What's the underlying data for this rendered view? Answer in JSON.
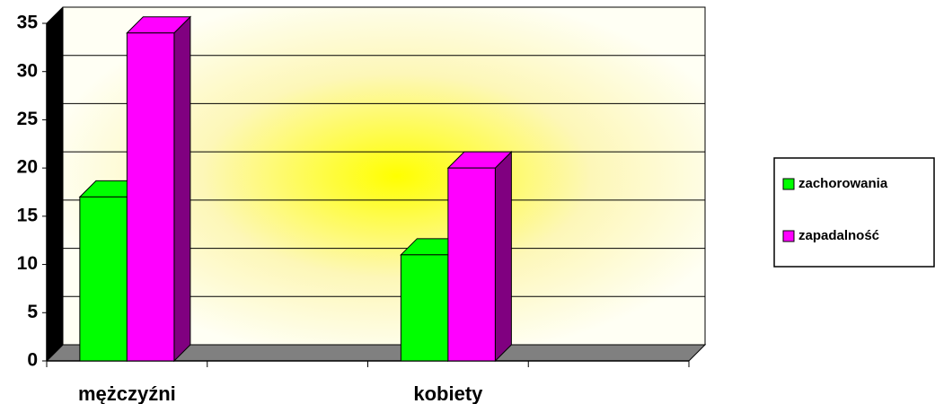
{
  "chart_data": {
    "type": "bar",
    "categories": [
      "mężczyźni",
      null,
      "kobiety",
      null
    ],
    "series": [
      {
        "name": "zachorowania",
        "color": "#00ff00",
        "values": [
          17,
          null,
          11,
          null
        ]
      },
      {
        "name": "zapadalność",
        "color": "#ff00ff",
        "values": [
          34,
          null,
          20,
          null
        ]
      }
    ],
    "ylim": [
      0,
      35
    ],
    "yticks": [
      0,
      5,
      10,
      15,
      20,
      25,
      30,
      35
    ],
    "grid": true,
    "legend": "right"
  }
}
